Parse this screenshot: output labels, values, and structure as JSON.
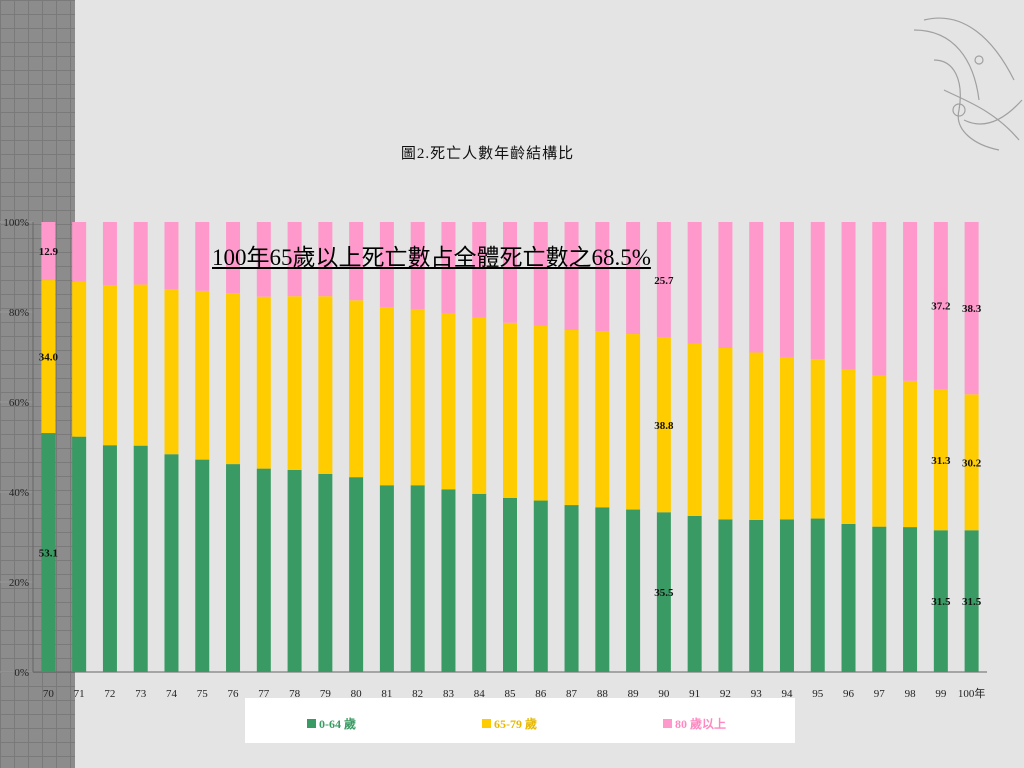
{
  "colors": {
    "young": "#3a9a63",
    "mid": "#ffcc00",
    "old": "#ff99cc",
    "axis": "#666666"
  },
  "legend": {
    "young": "0-64 歲",
    "mid": "65-79 歲",
    "old": "80 歲以上"
  },
  "annotation": "100年65歲以上死亡數占全體死亡數之68.5%",
  "chart_data": {
    "type": "bar",
    "stacked": true,
    "percent": true,
    "title": "圖2.死亡人數年齡結構比",
    "categories": [
      "70",
      "71",
      "72",
      "73",
      "74",
      "75",
      "76",
      "77",
      "78",
      "79",
      "80",
      "81",
      "82",
      "83",
      "84",
      "85",
      "86",
      "87",
      "88",
      "89",
      "90",
      "91",
      "92",
      "93",
      "94",
      "95",
      "96",
      "97",
      "98",
      "99",
      "100年"
    ],
    "series": [
      {
        "name": "0-64 歲",
        "values": [
          53.1,
          52.3,
          50.4,
          50.3,
          48.4,
          47.2,
          46.2,
          45.2,
          44.9,
          44.0,
          43.3,
          41.5,
          41.5,
          40.6,
          39.6,
          38.7,
          38.1,
          37.1,
          36.6,
          36.1,
          35.5,
          34.7,
          33.9,
          33.8,
          33.9,
          34.1,
          32.9,
          32.3,
          32.2,
          31.5,
          31.5
        ]
      },
      {
        "name": "65-79 歲",
        "values": [
          34.0,
          34.4,
          35.6,
          35.8,
          36.7,
          37.5,
          38.0,
          38.2,
          38.6,
          39.5,
          39.3,
          39.6,
          39.0,
          39.0,
          39.1,
          38.9,
          38.8,
          38.9,
          39.1,
          39.0,
          38.8,
          38.3,
          38.1,
          37.2,
          36.0,
          35.4,
          34.3,
          33.6,
          32.5,
          31.3,
          30.2
        ]
      },
      {
        "name": "80 歲以上",
        "values": [
          12.9,
          13.3,
          14.0,
          13.9,
          14.9,
          15.3,
          15.8,
          16.6,
          16.5,
          16.5,
          17.4,
          18.9,
          19.5,
          20.4,
          21.3,
          22.4,
          23.1,
          24.0,
          24.3,
          24.9,
          25.7,
          27.0,
          28.0,
          29.0,
          30.1,
          30.5,
          32.8,
          34.1,
          35.3,
          37.2,
          38.3
        ]
      }
    ],
    "data_labels": [
      {
        "index": 0,
        "values": [
          "53.1",
          "34.0",
          "12.9"
        ]
      },
      {
        "index": 20,
        "values": [
          "35.5",
          "38.8",
          "25.7"
        ]
      },
      {
        "index": 29,
        "values": [
          "31.5",
          "31.3",
          "37.2"
        ]
      },
      {
        "index": 30,
        "values": [
          "31.5",
          "30.2",
          "38.3"
        ]
      }
    ],
    "ylim": [
      0,
      100
    ],
    "yticks": [
      "0%",
      "20%",
      "40%",
      "60%",
      "80%",
      "100%"
    ],
    "grid": true,
    "legend_position": "bottom"
  }
}
